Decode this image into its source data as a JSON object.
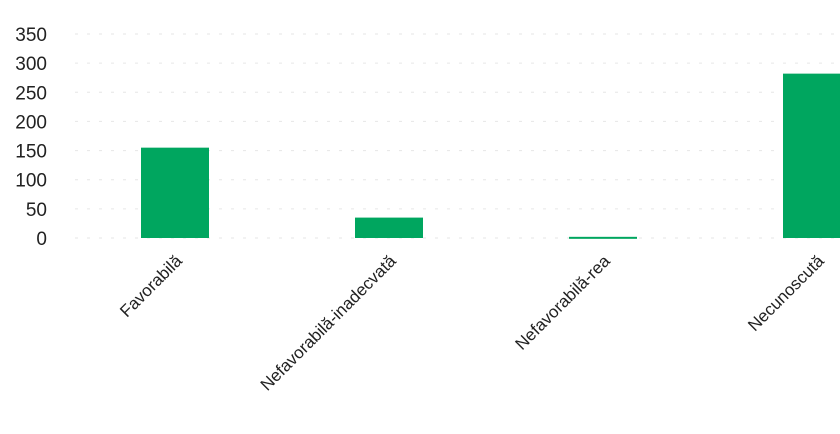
{
  "chart_data": {
    "type": "bar",
    "categories": [
      "Favorabilă",
      "Nefavorabilă-inadecvată",
      "Nefavorabilă-rea",
      "Necunoscută"
    ],
    "values": [
      155,
      35,
      2,
      282
    ],
    "ylim": [
      0,
      350
    ],
    "yticks": [
      "350",
      "300",
      "250",
      "200",
      "150",
      "100",
      "50",
      "0"
    ],
    "grid": true,
    "legend": "none",
    "bar_color": "#00a65f"
  }
}
